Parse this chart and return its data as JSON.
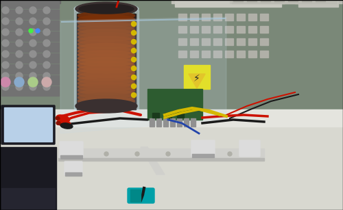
{
  "figsize": [
    5.0,
    3.07
  ],
  "dpi": 100,
  "border_color": "#000000",
  "border_linewidth": 1.0,
  "background_color": "#ffffff",
  "wall_color": "#7a8878",
  "bench_color": "#d8d8d0",
  "bench_top_color": "#e8e8e2",
  "left_instrument_color": "#787878",
  "left_instrument_dark": "#505050",
  "laptop_body_color": "#1a1a22",
  "laptop_screen_color": "#b8cce0",
  "coil_copper": "#7a3008",
  "coil_dark": "#2a2020",
  "coil_cylinder_top": "#3a3030",
  "acrylic_color": "#c8dcea",
  "acrylic_alpha": 0.35,
  "rail_color": "#d0d0cc",
  "rail_dark": "#b8b8b4",
  "white_block_color": "#dcdcdc",
  "white_block_shadow": "#a0a0a0",
  "right_equip_bg": "#c8c8c0",
  "right_equip_top": "#b0b0a8",
  "osc_screen_color": "#4a7a9a",
  "osc_body_color": "#c0c0b8",
  "warn_yellow": "#e8c000",
  "pcb_color": "#2d5c30",
  "heatsink_color": "#909090",
  "wire_red": "#cc1100",
  "wire_black": "#1a1a1a",
  "wire_yellow": "#d4b800",
  "wire_blue": "#2244aa",
  "clip_red": "#cc1100",
  "dot_yellow": "#d4b800",
  "teal_obj": "#00a0a8"
}
